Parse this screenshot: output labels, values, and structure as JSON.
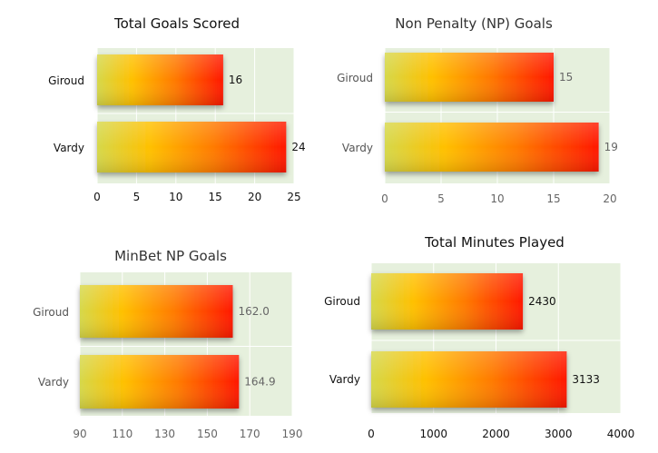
{
  "chart_data": [
    {
      "type": "bar",
      "orientation": "horizontal",
      "title": "Total Goals Scored",
      "categories": [
        "Giroud",
        "Vardy"
      ],
      "values": [
        16,
        24
      ],
      "value_labels": [
        "16",
        "24"
      ],
      "xlim": [
        0,
        25
      ],
      "xticks": [
        "0",
        "5",
        "10",
        "15",
        "20",
        "25"
      ],
      "grid": true
    },
    {
      "type": "bar",
      "orientation": "horizontal",
      "title": "Non Penalty (NP) Goals",
      "categories": [
        "Giroud",
        "Vardy"
      ],
      "values": [
        15,
        19
      ],
      "value_labels": [
        "15",
        "19"
      ],
      "xlim": [
        0,
        20
      ],
      "xticks": [
        "0",
        "5",
        "10",
        "15",
        "20"
      ],
      "grid": true
    },
    {
      "type": "bar",
      "orientation": "horizontal",
      "title": "MinBet NP Goals",
      "categories": [
        "Giroud",
        "Vardy"
      ],
      "values": [
        162.0,
        164.9
      ],
      "value_labels": [
        "162.0",
        "164.9"
      ],
      "xlim": [
        90,
        190
      ],
      "xticks": [
        "90",
        "110",
        "130",
        "150",
        "170",
        "190"
      ],
      "grid": true
    },
    {
      "type": "bar",
      "orientation": "horizontal",
      "title": "Total Minutes Played",
      "categories": [
        "Giroud",
        "Vardy"
      ],
      "values": [
        2430,
        3133
      ],
      "value_labels": [
        "2430",
        "3133"
      ],
      "xlim": [
        0,
        4000
      ],
      "xticks": [
        "0",
        "1000",
        "2000",
        "3000",
        "4000"
      ],
      "grid": true
    }
  ],
  "colors": {
    "plot_background": "#e6f0dd",
    "grid": "#ffffff",
    "gradient": [
      "#d6d84a",
      "#ffc000",
      "#ff7a00",
      "#ff1800"
    ]
  }
}
